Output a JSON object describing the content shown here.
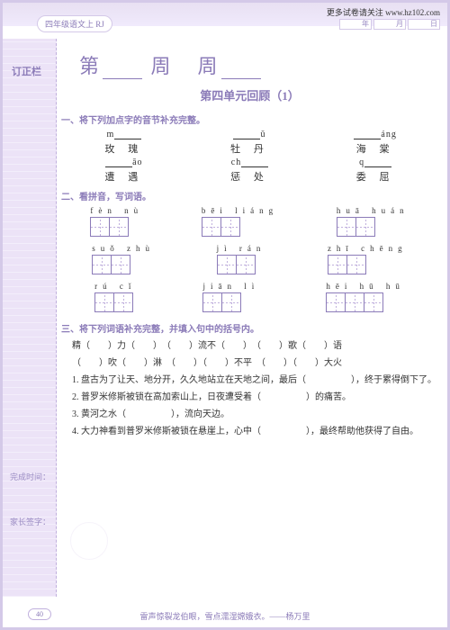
{
  "header": {
    "url": "更多试卷请关注 www.hz102.com",
    "badge": "四年级语文上 RJ",
    "date": [
      "年",
      "月",
      "日"
    ]
  },
  "sidebar": {
    "label": "订正栏",
    "t1": "完成时间：",
    "t2": "家长签字："
  },
  "title": {
    "main_a": "第",
    "main_b": "周",
    "main_c": "周",
    "sub": "第四单元回顾（1）"
  },
  "sec1": {
    "h": "一、将下列加点字的音节补充完整。",
    "r1": [
      {
        "py1": "m",
        "py2": "",
        "hz": "玫 瑰"
      },
      {
        "py1": "",
        "py2": "ǔ",
        "hz": "牡 丹"
      },
      {
        "py1": "",
        "py2": "áng",
        "hz": "海 棠"
      }
    ],
    "r2": [
      {
        "py1": "",
        "py2": "āo",
        "hz": "遭 遇"
      },
      {
        "py1": "ch",
        "py2": "",
        "hz": "惩 处"
      },
      {
        "py1": "q",
        "py2": "",
        "hz": "委 屈"
      }
    ]
  },
  "sec2": {
    "h": "二、看拼音，写词语。",
    "r1": [
      {
        "py": "fèn  nù",
        "n": 2
      },
      {
        "py": "bēi  liáng",
        "n": 2
      },
      {
        "py": "huā  huán",
        "n": 2
      }
    ],
    "r2": [
      {
        "py": "suǒ  zhù",
        "n": 2
      },
      {
        "py": "jì  rán",
        "n": 2
      },
      {
        "py": "zhī  chēng",
        "n": 2
      }
    ],
    "r3": [
      {
        "py": "rú   cǐ",
        "n": 2
      },
      {
        "py": "jiān   lì",
        "n": 2
      },
      {
        "py": "hēi  hū  hū",
        "n": 3
      }
    ]
  },
  "sec3": {
    "h": "三、将下列词语补充完整，并填入句中的括号内。",
    "w1": "精（　　）力（　　）　（　　）流不（　　）　（　　）歌（　　）语",
    "w2": "（　　）吹（　　）淋　（　　）（　　）不平　（　　）（　　）大火",
    "items": [
      "1. 盘古为了让天、地分开，久久地站立在天地之间，最后（　　　　　），终于累得倒下了。",
      "2. 普罗米修斯被锁在高加索山上，日夜遭受着（　　　　　）的痛苦。",
      "3. 黄河之水（　　　　　），流向天边。",
      "4. 大力神看到普罗米修斯被锁在悬崖上，心中（　　　　　），最终帮助他获得了自由。"
    ]
  },
  "footer": {
    "quote": "雷声惊裂龙伯眼，雪点濡湿嫦娥衣。——杨万里",
    "page": "40"
  }
}
